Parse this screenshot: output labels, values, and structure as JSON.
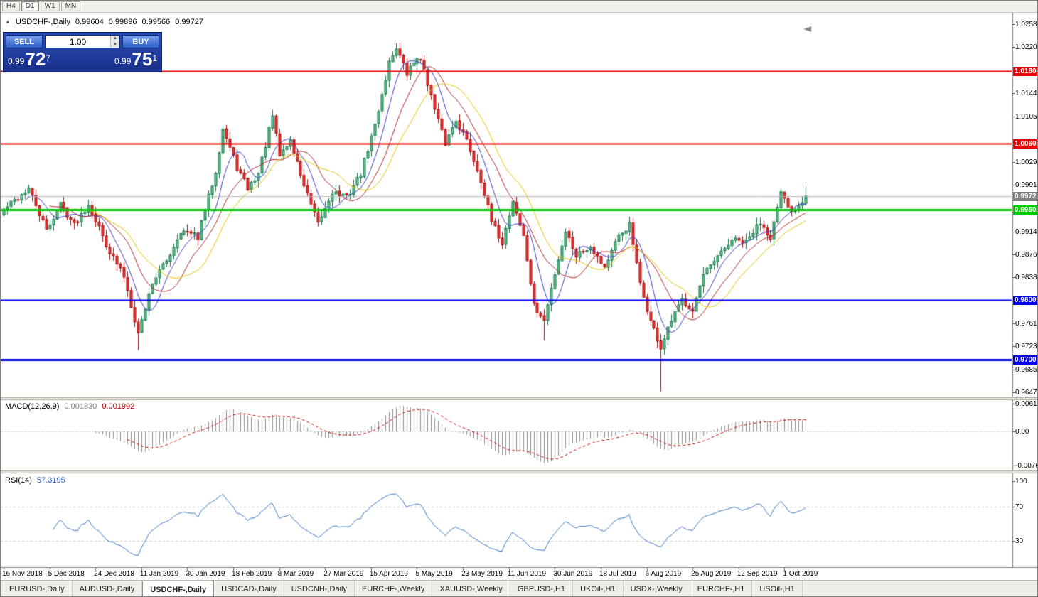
{
  "window": {
    "title": "USDCHF-,Daily"
  },
  "toolbar": {
    "timeframes": [
      "H4",
      "D1",
      "W1",
      "MN"
    ],
    "active": "D1"
  },
  "icons": {
    "collapse_arrow": "▲",
    "spinner_up": "▲",
    "spinner_down": "▼",
    "shift_marker": "◄"
  },
  "chart": {
    "header": {
      "symbol": "USDCHF-,Daily",
      "open": "0.99604",
      "high": "0.99896",
      "low": "0.99566",
      "close": "0.99727"
    },
    "trade_panel": {
      "sell_label": "SELL",
      "buy_label": "BUY",
      "volume": "1.00",
      "bid": {
        "prefix": "0.99",
        "big": "72",
        "sup": "7"
      },
      "ask": {
        "prefix": "0.99",
        "big": "75",
        "sup": "1"
      }
    },
    "scale_ticks": [
      "1.02580",
      "1.02200",
      "1.01440",
      "1.01050",
      "1.00290",
      "0.99910",
      "0.99140",
      "0.98760",
      "0.98380",
      "0.97610",
      "0.97230",
      "0.96850",
      "0.96470"
    ],
    "levels": [
      {
        "price": 1.01804,
        "label": "1.01804",
        "color": "#ee0000",
        "width": 2
      },
      {
        "price": 1.00602,
        "label": "1.00602",
        "color": "#ee0000",
        "width": 2
      },
      {
        "price": 0.99501,
        "label": "0.99501",
        "color": "#00cc00",
        "width": 3
      },
      {
        "price": 0.98005,
        "label": "0.98005",
        "color": "#0000ee",
        "width": 2
      },
      {
        "price": 0.97007,
        "label": "0.97007",
        "color": "#0000ee",
        "width": 3
      }
    ],
    "current_price": {
      "value": 0.99727,
      "label": "0.99727",
      "line_color": "#b8b8b8",
      "box_color": "#808080"
    },
    "colors": {
      "up_fill": "#63c08f",
      "up_edge": "#15774a",
      "down_fill": "#e63232",
      "down_edge": "#aa1111",
      "background": "#ffffff"
    }
  },
  "macd": {
    "label": "MACD(12,26,9)",
    "value_main": "0.001830",
    "value_signal": "0.001992",
    "scale": [
      "0.00613",
      "0.00",
      "-0.00761"
    ],
    "scale_values": [
      0.00613,
      0,
      -0.00761
    ],
    "histogram_color": "#909090",
    "signal_color": "#c00000"
  },
  "rsi": {
    "label": "RSI(14)",
    "value": "57.3195",
    "scale": [
      "100",
      "70",
      "30"
    ],
    "scale_values": [
      100,
      70,
      30
    ],
    "levels": [
      70,
      30
    ],
    "line_color": "#3a75c4"
  },
  "time_axis": {
    "labels": [
      {
        "text": "16 Nov 2018",
        "index": 0
      },
      {
        "text": "5 Dec 2018",
        "index": 13
      },
      {
        "text": "24 Dec 2018",
        "index": 26
      },
      {
        "text": "11 Jan 2019",
        "index": 39
      },
      {
        "text": "30 Jan 2019",
        "index": 52
      },
      {
        "text": "18 Feb 2019",
        "index": 65
      },
      {
        "text": "8 Mar 2019",
        "index": 78
      },
      {
        "text": "27 Mar 2019",
        "index": 91
      },
      {
        "text": "15 Apr 2019",
        "index": 104
      },
      {
        "text": "5 May 2019",
        "index": 117
      },
      {
        "text": "23 May 2019",
        "index": 130
      },
      {
        "text": "11 Jun 2019",
        "index": 143
      },
      {
        "text": "30 Jun 2019",
        "index": 156
      },
      {
        "text": "18 Jul 2019",
        "index": 169
      },
      {
        "text": "6 Aug 2019",
        "index": 182
      },
      {
        "text": "25 Aug 2019",
        "index": 195
      },
      {
        "text": "12 Sep 2019",
        "index": 208
      },
      {
        "text": "1 Oct 2019",
        "index": 221
      }
    ]
  },
  "tabs": {
    "active_index": 2,
    "items": [
      "EURUSD-,Daily",
      "AUDUSD-,Daily",
      "USDCHF-,Daily",
      "USDCAD-,Daily",
      "USDCNH-,Daily",
      "EURCHF-,Weekly",
      "XAUUSD-,Weekly",
      "GBPUSD-,H1",
      "UKOil-,H1",
      "USDX-,Weekly",
      "EURCHF-,H1",
      "USOil-,H1"
    ]
  },
  "chart_data": {
    "type": "candlestick",
    "symbol": "USDCHF",
    "timeframe": "Daily",
    "title": "USDCHF-,Daily",
    "n_candles": 228,
    "x_range": [
      "16 Nov 2018",
      "11 Oct 2019"
    ],
    "y_axis": {
      "min": 0.964,
      "max": 1.0273
    },
    "ohlc_display": {
      "open": 0.99604,
      "high": 0.99896,
      "low": 0.99566,
      "close": 0.99727
    },
    "horizontal_levels": [
      1.01804,
      1.00602,
      0.99501,
      0.98005,
      0.97007
    ],
    "waypoints": [
      [
        0,
        0.995
      ],
      [
        7,
        0.9985
      ],
      [
        12,
        0.9915
      ],
      [
        16,
        0.996
      ],
      [
        20,
        0.9925
      ],
      [
        24,
        0.996
      ],
      [
        30,
        0.988
      ],
      [
        34,
        0.984
      ],
      [
        38,
        0.9745
      ],
      [
        42,
        0.983
      ],
      [
        46,
        0.9865
      ],
      [
        50,
        0.9915
      ],
      [
        55,
        0.9905
      ],
      [
        60,
        1.0015
      ],
      [
        62,
        1.0085
      ],
      [
        66,
        1.002
      ],
      [
        69,
        0.9985
      ],
      [
        72,
        1.001
      ],
      [
        76,
        1.0105
      ],
      [
        78,
        1.004
      ],
      [
        81,
        1.0065
      ],
      [
        85,
        0.999
      ],
      [
        89,
        0.9925
      ],
      [
        93,
        0.998
      ],
      [
        97,
        0.997
      ],
      [
        101,
        1.001
      ],
      [
        105,
        1.009
      ],
      [
        109,
        1.0195
      ],
      [
        111,
        1.022
      ],
      [
        114,
        1.0175
      ],
      [
        117,
        1.0205
      ],
      [
        119,
        1.0185
      ],
      [
        122,
        1.0115
      ],
      [
        125,
        1.006
      ],
      [
        128,
        1.01
      ],
      [
        131,
        1.0065
      ],
      [
        135,
        1.0
      ],
      [
        138,
        0.993
      ],
      [
        141,
        0.9895
      ],
      [
        144,
        0.9965
      ],
      [
        147,
        0.9905
      ],
      [
        150,
        0.979
      ],
      [
        153,
        0.9765
      ],
      [
        156,
        0.9845
      ],
      [
        159,
        0.9915
      ],
      [
        162,
        0.9875
      ],
      [
        166,
        0.989
      ],
      [
        170,
        0.9855
      ],
      [
        174,
        0.9905
      ],
      [
        177,
        0.9925
      ],
      [
        180,
        0.9825
      ],
      [
        183,
        0.9765
      ],
      [
        186,
        0.972
      ],
      [
        189,
        0.9765
      ],
      [
        192,
        0.98
      ],
      [
        195,
        0.9785
      ],
      [
        198,
        0.984
      ],
      [
        202,
        0.987
      ],
      [
        206,
        0.99
      ],
      [
        210,
        0.9895
      ],
      [
        214,
        0.993
      ],
      [
        217,
        0.9905
      ],
      [
        220,
        0.9975
      ],
      [
        223,
        0.9945
      ],
      [
        227,
        0.99727
      ]
    ],
    "wick_events": [
      {
        "index": 38,
        "low": 0.9717
      },
      {
        "index": 111,
        "high": 1.0226
      },
      {
        "index": 153,
        "low": 0.9733
      },
      {
        "index": 186,
        "low": 0.9648
      }
    ],
    "indicators": {
      "moving_averages": {
        "periods": [
          7,
          14,
          21
        ],
        "colors": [
          "#3a3ac8",
          "#b22222",
          "#e0c400"
        ]
      },
      "macd": {
        "fast": 12,
        "slow": 26,
        "signal": 9,
        "current_main": 0.00183,
        "current_signal": 0.001992
      },
      "rsi": {
        "period": 14,
        "current": 57.3195,
        "levels": [
          70,
          30
        ]
      }
    }
  }
}
